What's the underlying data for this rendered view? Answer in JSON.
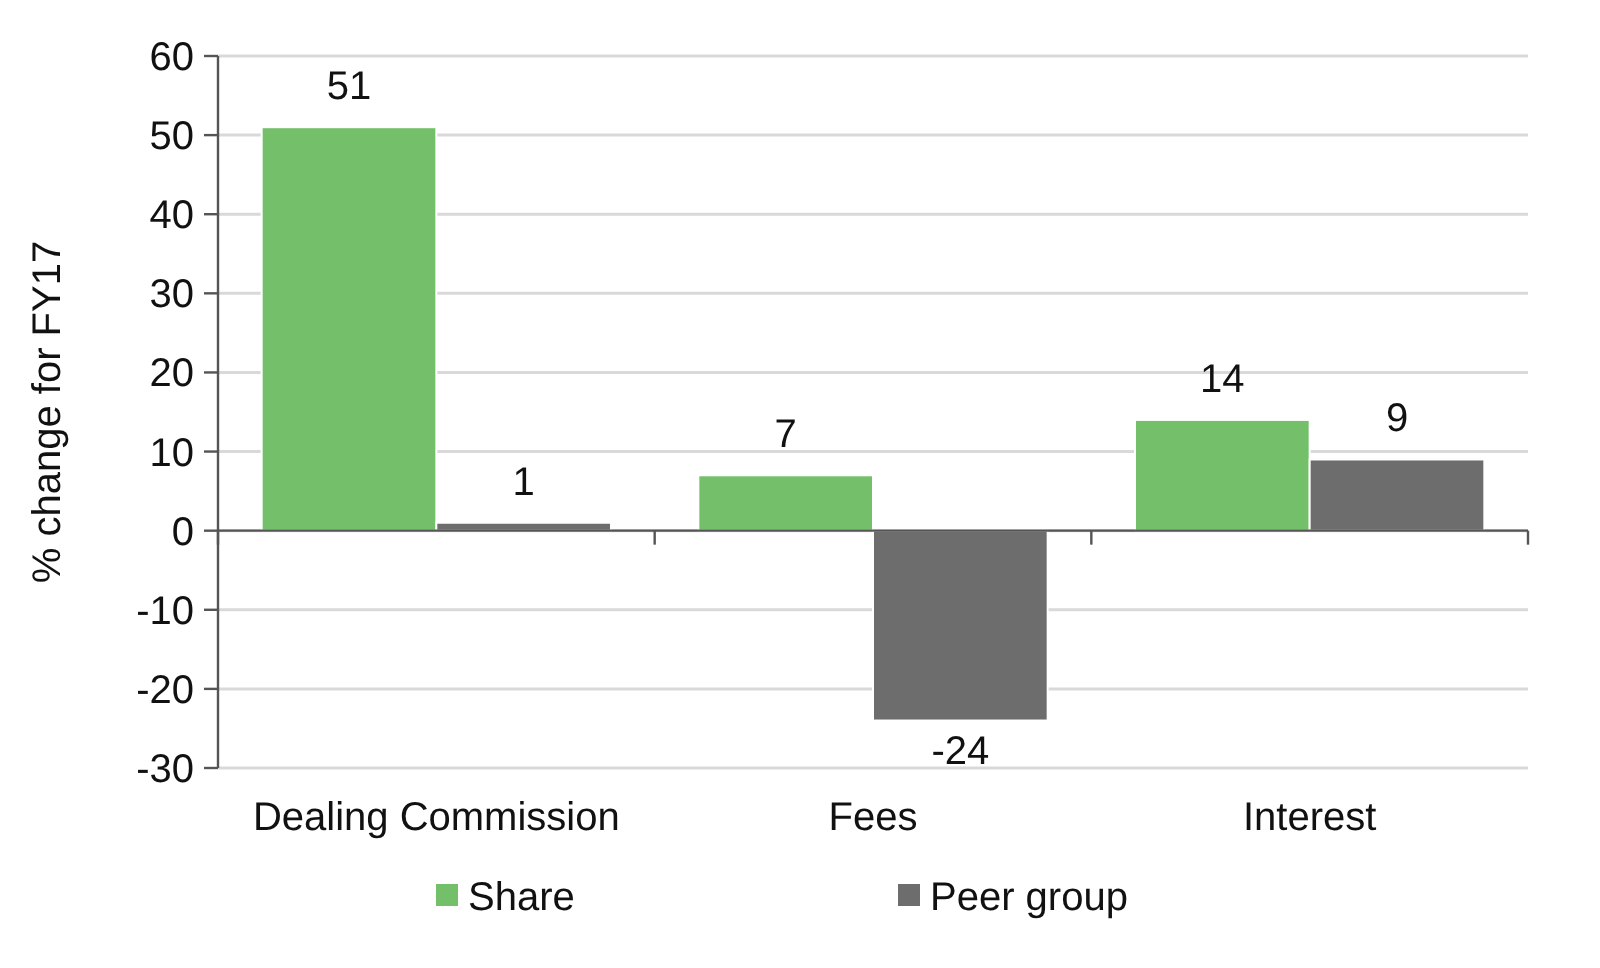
{
  "chart_data": {
    "type": "bar",
    "ylabel": "% change for FY17",
    "categories": [
      "Dealing Commission",
      "Fees",
      "Interest"
    ],
    "series": [
      {
        "name": "Share",
        "color": "#74c06a",
        "values": [
          51,
          7,
          14
        ]
      },
      {
        "name": "Peer group",
        "color": "#6d6d6d",
        "values": [
          1,
          -24,
          9
        ]
      }
    ],
    "ylim": [
      -30,
      60
    ],
    "yticks": [
      -30,
      -20,
      -10,
      0,
      10,
      20,
      30,
      40,
      50,
      60
    ],
    "grid": "y",
    "legend": "bottom",
    "data_labels": true
  }
}
